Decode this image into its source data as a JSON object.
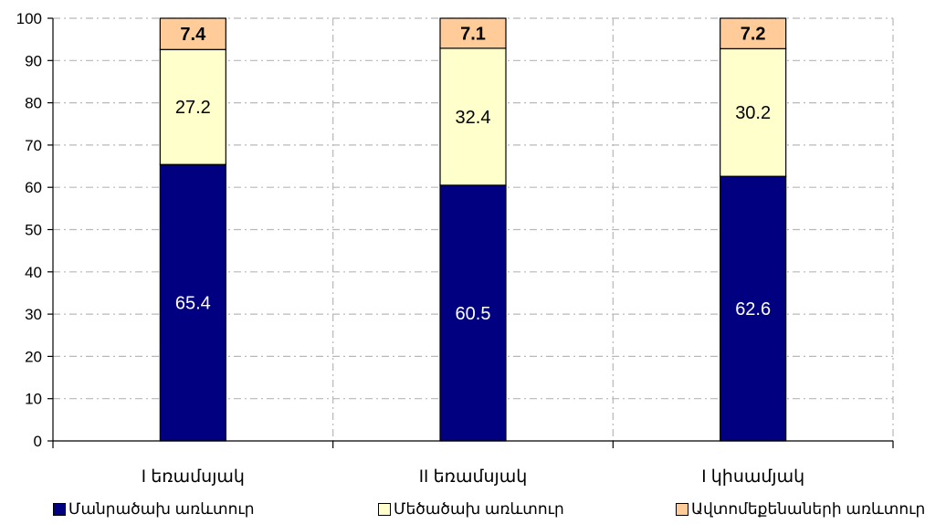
{
  "chart_data": {
    "type": "bar",
    "stacked": true,
    "categories": [
      "I եռամսյակ",
      "II եռամսյակ",
      "I կիսամյակ"
    ],
    "series": [
      {
        "name": "Մանրածախ առևտուր",
        "values": [
          65.4,
          60.5,
          62.6
        ],
        "color": "#000080",
        "label_color": "#ffffff"
      },
      {
        "name": "Մեծածախ առևտուր",
        "values": [
          27.2,
          32.4,
          30.2
        ],
        "color": "#ffffcc",
        "label_color": "#000000"
      },
      {
        "name": "Ավտոմեքենաների առևտուր",
        "values": [
          7.4,
          7.1,
          7.2
        ],
        "color": "#ffcc99",
        "label_color": "#000000"
      }
    ],
    "ylim": [
      0,
      100
    ],
    "yticks": [
      "0",
      "10",
      "20",
      "30",
      "40",
      "50",
      "60",
      "70",
      "80",
      "90",
      "100"
    ],
    "grid": true,
    "legend_position": "bottom"
  }
}
